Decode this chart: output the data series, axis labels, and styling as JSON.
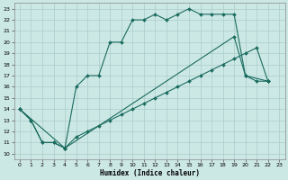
{
  "xlabel": "Humidex (Indice chaleur)",
  "bg_color": "#cce8e5",
  "grid_color": "#aaccca",
  "line_color": "#1a6b5e",
  "xlim": [
    -0.5,
    23.5
  ],
  "ylim": [
    9.5,
    23.5
  ],
  "xticks": [
    0,
    1,
    2,
    3,
    4,
    5,
    6,
    7,
    8,
    9,
    10,
    11,
    12,
    13,
    14,
    15,
    16,
    17,
    18,
    19,
    20,
    21,
    22,
    23
  ],
  "yticks": [
    10,
    11,
    12,
    13,
    14,
    15,
    16,
    17,
    18,
    19,
    20,
    21,
    22,
    23
  ],
  "line1_x": [
    0,
    1,
    2,
    3,
    4,
    5,
    6,
    7,
    8,
    9,
    10,
    11,
    12,
    13,
    14,
    15,
    16,
    17,
    18,
    19,
    20,
    21,
    22
  ],
  "line1_y": [
    14,
    13,
    11,
    11,
    10.5,
    16,
    17,
    17,
    20,
    20,
    22,
    22,
    22.5,
    22,
    22.5,
    23,
    22.5,
    22.5,
    22.5,
    22.5,
    17,
    16.5,
    16.5
  ],
  "line2_x": [
    0,
    1,
    2,
    3,
    4,
    5,
    6,
    7,
    8,
    9,
    10,
    11,
    12,
    13,
    14,
    15,
    16,
    17,
    18,
    19,
    20,
    21,
    22
  ],
  "line2_y": [
    14,
    13,
    11,
    11,
    10.5,
    11.5,
    12,
    12.5,
    13,
    13.5,
    14,
    14.5,
    15,
    15.5,
    16,
    16.5,
    17,
    17.5,
    18,
    18.5,
    19,
    19.5,
    16.5
  ],
  "line3_x": [
    0,
    4,
    19,
    20,
    22
  ],
  "line3_y": [
    14,
    10.5,
    20.5,
    17,
    16.5
  ]
}
